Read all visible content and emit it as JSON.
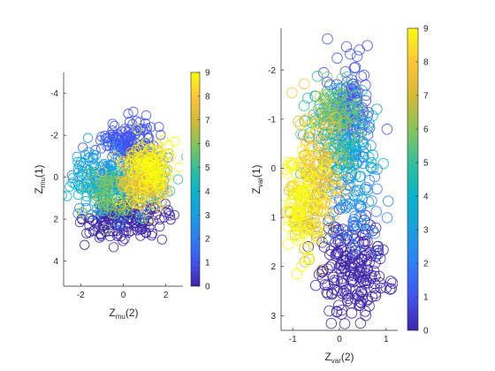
{
  "chart_data": [
    {
      "type": "scatter",
      "xlabel": "Z",
      "xlabel_sub": "mu",
      "xlabel_suffix": "(2)",
      "ylabel": "Z",
      "ylabel_sub": "mu",
      "ylabel_suffix": "(1)",
      "xlim": [
        -2.8,
        2.8
      ],
      "ylim": [
        -5.0,
        5.2
      ],
      "y_reversed": true,
      "xticks": [
        -2,
        0,
        2
      ],
      "yticks": [
        -4,
        -2,
        0,
        2,
        4
      ],
      "colormap": "parula",
      "colorbar": {
        "min": 0,
        "max": 9,
        "ticks": [
          0,
          1,
          2,
          3,
          4,
          5,
          6,
          7,
          8,
          9
        ]
      },
      "marker": "open-circle",
      "clusters": [
        {
          "label_value": 1,
          "cx": 0.2,
          "cy": -1.6,
          "sx": 0.6,
          "sy": 0.5,
          "n": 150
        },
        {
          "label_value": 0,
          "cx": 0.1,
          "cy": 2.0,
          "sx": 1.0,
          "sy": 0.45,
          "n": 170
        },
        {
          "label_value": 2,
          "cx": -0.6,
          "cy": 0.5,
          "sx": 0.9,
          "sy": 0.8,
          "n": 60
        },
        {
          "label_value": 3,
          "cx": -0.8,
          "cy": -0.3,
          "sx": 0.8,
          "sy": 0.7,
          "n": 90
        },
        {
          "label_value": 4,
          "cx": -1.2,
          "cy": 0.6,
          "sx": 0.8,
          "sy": 0.6,
          "n": 70
        },
        {
          "label_value": 5,
          "cx": 1.2,
          "cy": 0.5,
          "sx": 0.6,
          "sy": 0.7,
          "n": 60
        },
        {
          "label_value": 6,
          "cx": -0.3,
          "cy": 0.8,
          "sx": 0.9,
          "sy": 0.6,
          "n": 80
        },
        {
          "label_value": 7,
          "cx": 1.2,
          "cy": -0.2,
          "sx": 0.5,
          "sy": 0.7,
          "n": 70
        },
        {
          "label_value": 8,
          "cx": 0.9,
          "cy": 0.0,
          "sx": 0.6,
          "sy": 0.8,
          "n": 80
        },
        {
          "label_value": 9,
          "cx": 1.3,
          "cy": -0.5,
          "sx": 0.5,
          "sy": 0.6,
          "n": 90
        }
      ]
    },
    {
      "type": "scatter",
      "xlabel": "Z",
      "xlabel_sub": "var",
      "xlabel_suffix": "(2)",
      "ylabel": "Z",
      "ylabel_sub": "var",
      "ylabel_suffix": "(1)",
      "xlim": [
        -1.25,
        1.25
      ],
      "ylim": [
        -2.85,
        3.3
      ],
      "y_reversed": true,
      "xticks": [
        -1,
        0,
        1
      ],
      "yticks": [
        -2,
        -1,
        0,
        1,
        2,
        3
      ],
      "colormap": "parula",
      "colorbar": {
        "min": 0,
        "max": 9,
        "ticks": [
          0,
          1,
          2,
          3,
          4,
          5,
          6,
          7,
          8,
          9
        ]
      },
      "marker": "open-circle",
      "clusters": [
        {
          "label_value": 0,
          "cx": 0.3,
          "cy": 2.0,
          "sx": 0.35,
          "sy": 0.5,
          "n": 200
        },
        {
          "label_value": 1,
          "cx": 0.2,
          "cy": -1.2,
          "sx": 0.25,
          "sy": 0.5,
          "n": 120
        },
        {
          "label_value": 2,
          "cx": 0.3,
          "cy": 0.6,
          "sx": 0.3,
          "sy": 0.6,
          "n": 70
        },
        {
          "label_value": 3,
          "cx": 0.1,
          "cy": -0.7,
          "sx": 0.3,
          "sy": 0.6,
          "n": 70
        },
        {
          "label_value": 4,
          "cx": 0.2,
          "cy": -0.3,
          "sx": 0.3,
          "sy": 0.6,
          "n": 60
        },
        {
          "label_value": 5,
          "cx": -0.2,
          "cy": -0.9,
          "sx": 0.3,
          "sy": 0.5,
          "n": 60
        },
        {
          "label_value": 6,
          "cx": -0.1,
          "cy": -1.1,
          "sx": 0.3,
          "sy": 0.5,
          "n": 70
        },
        {
          "label_value": 7,
          "cx": -0.6,
          "cy": 0.6,
          "sx": 0.25,
          "sy": 0.6,
          "n": 90
        },
        {
          "label_value": 8,
          "cx": -0.5,
          "cy": 0.0,
          "sx": 0.3,
          "sy": 0.6,
          "n": 80
        },
        {
          "label_value": 9,
          "cx": -0.8,
          "cy": 0.7,
          "sx": 0.25,
          "sy": 0.55,
          "n": 100
        }
      ]
    }
  ]
}
